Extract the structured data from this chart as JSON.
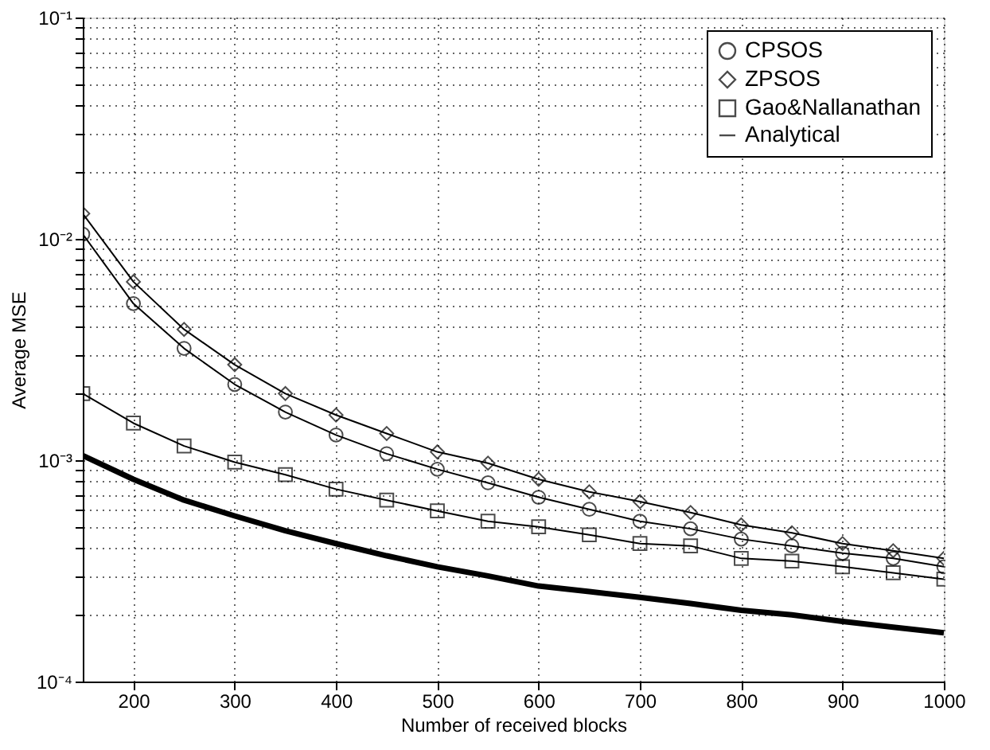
{
  "chart_data": {
    "type": "line",
    "xlabel": "Number of received blocks",
    "ylabel": "Average MSE",
    "x": [
      150,
      200,
      250,
      300,
      350,
      400,
      450,
      500,
      550,
      600,
      650,
      700,
      750,
      800,
      850,
      900,
      950,
      1000
    ],
    "series": [
      {
        "name": "CPSOS",
        "color": "#000000",
        "marker": "circle",
        "values": [
          0.0105,
          0.0051,
          0.0032,
          0.0022,
          0.00165,
          0.0013,
          0.00107,
          0.00091,
          0.00079,
          0.00068,
          0.0006,
          0.00053,
          0.00049,
          0.00044,
          0.00041,
          0.00038,
          0.00036,
          0.00033
        ]
      },
      {
        "name": "ZPSOS",
        "color": "#000000",
        "marker": "diamond",
        "values": [
          0.013,
          0.0064,
          0.0039,
          0.0027,
          0.002,
          0.0016,
          0.00132,
          0.00109,
          0.00097,
          0.00082,
          0.00072,
          0.00065,
          0.00058,
          0.00051,
          0.00047,
          0.00042,
          0.00039,
          0.00036
        ]
      },
      {
        "name": "Gao&Nallanathan",
        "color": "#000000",
        "marker": "square",
        "values": [
          0.002,
          0.00147,
          0.00116,
          0.00098,
          0.00086,
          0.00074,
          0.00066,
          0.00059,
          0.00053,
          0.0005,
          0.00046,
          0.00042,
          0.00041,
          0.00036,
          0.00035,
          0.00033,
          0.00031,
          0.00029
        ]
      },
      {
        "name": "Analytical",
        "color": "#000000",
        "marker": "none",
        "values": [
          0.00105,
          0.00082,
          0.00066,
          0.00056,
          0.00048,
          0.00042,
          0.00037,
          0.00033,
          0.0003,
          0.00027,
          0.000255,
          0.00024,
          0.000225,
          0.00021,
          0.0002,
          0.000187,
          0.000176,
          0.000166
        ]
      }
    ],
    "xlim": [
      150,
      1000
    ],
    "xticks": [
      200,
      300,
      400,
      500,
      600,
      700,
      800,
      900,
      1000
    ],
    "ylim": [
      0.0001,
      0.1
    ],
    "log": "y",
    "yticks": [
      {
        "value": 0.0001,
        "label": "10⁻⁴"
      },
      {
        "value": 0.0002,
        "label": null
      },
      {
        "value": 0.0003,
        "label": null
      },
      {
        "value": 0.0004,
        "label": null
      },
      {
        "value": 0.0005,
        "label": null
      },
      {
        "value": 0.0006,
        "label": null
      },
      {
        "value": 0.0007,
        "label": null
      },
      {
        "value": 0.0008,
        "label": null
      },
      {
        "value": 0.0009,
        "label": null
      },
      {
        "value": 0.001,
        "label": "10⁻³"
      },
      {
        "value": 0.002,
        "label": null
      },
      {
        "value": 0.003,
        "label": null
      },
      {
        "value": 0.004,
        "label": null
      },
      {
        "value": 0.005,
        "label": null
      },
      {
        "value": 0.006,
        "label": null
      },
      {
        "value": 0.007,
        "label": null
      },
      {
        "value": 0.008,
        "label": null
      },
      {
        "value": 0.009,
        "label": null
      },
      {
        "value": 0.01,
        "label": "10⁻²"
      },
      {
        "value": 0.02,
        "label": null
      },
      {
        "value": 0.03,
        "label": null
      },
      {
        "value": 0.04,
        "label": null
      },
      {
        "value": 0.05,
        "label": null
      },
      {
        "value": 0.06,
        "label": null
      },
      {
        "value": 0.07,
        "label": null
      },
      {
        "value": 0.08,
        "label": null
      },
      {
        "value": 0.09,
        "label": null
      },
      {
        "value": 0.1,
        "label": "10⁻¹"
      }
    ],
    "grid": true,
    "legend": "top right",
    "line_style": "solid"
  }
}
